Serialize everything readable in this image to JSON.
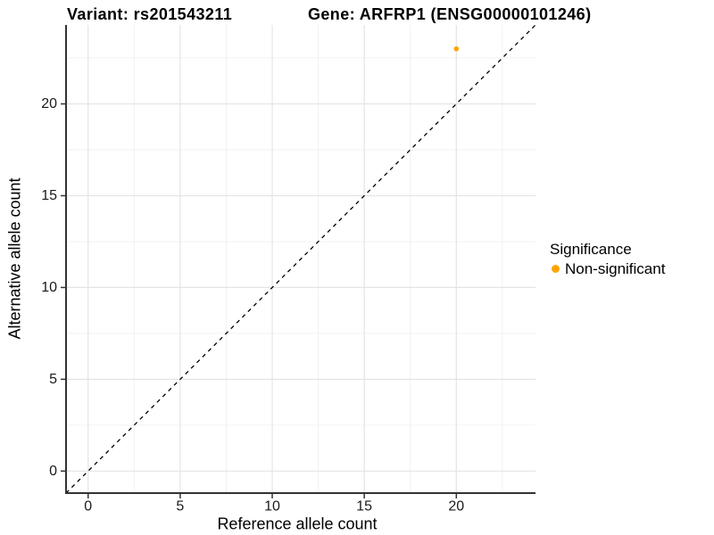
{
  "header": {
    "title_left": "Variant: rs201543211",
    "title_right": "Gene: ARFRP1 (ENSG00000101246)"
  },
  "chart_data": {
    "type": "scatter",
    "title": "Variant: rs201543211    Gene: ARFRP1 (ENSG00000101246)",
    "xlabel": "Reference allele count",
    "ylabel": "Alternative allele count",
    "xlim": [
      -1.2,
      24.3
    ],
    "ylim": [
      -1.2,
      24.3
    ],
    "x_major_ticks": [
      0,
      5,
      10,
      15,
      20
    ],
    "y_major_ticks": [
      0,
      5,
      10,
      15,
      20
    ],
    "x_minor_ticks": [
      2.5,
      7.5,
      12.5,
      17.5,
      22.5
    ],
    "y_minor_ticks": [
      2.5,
      7.5,
      12.5,
      17.5,
      22.5
    ],
    "grid": "on",
    "series": [
      {
        "name": "Non-significant",
        "color": "#FFA500",
        "marker": "circle",
        "points": [
          {
            "x": 20,
            "y": 23
          }
        ]
      }
    ],
    "reference_line": {
      "type": "identity",
      "style": "dashed",
      "color": "#000000"
    },
    "legend": {
      "title": "Significance",
      "position": "right",
      "items": [
        {
          "label": "Non-significant",
          "color": "#FFA500"
        }
      ]
    },
    "style": {
      "axis_color": "#333333",
      "grid_major_color": "#E4E4E4",
      "grid_minor_color": "#F1F1F1",
      "background": "#FFFFFF"
    }
  }
}
